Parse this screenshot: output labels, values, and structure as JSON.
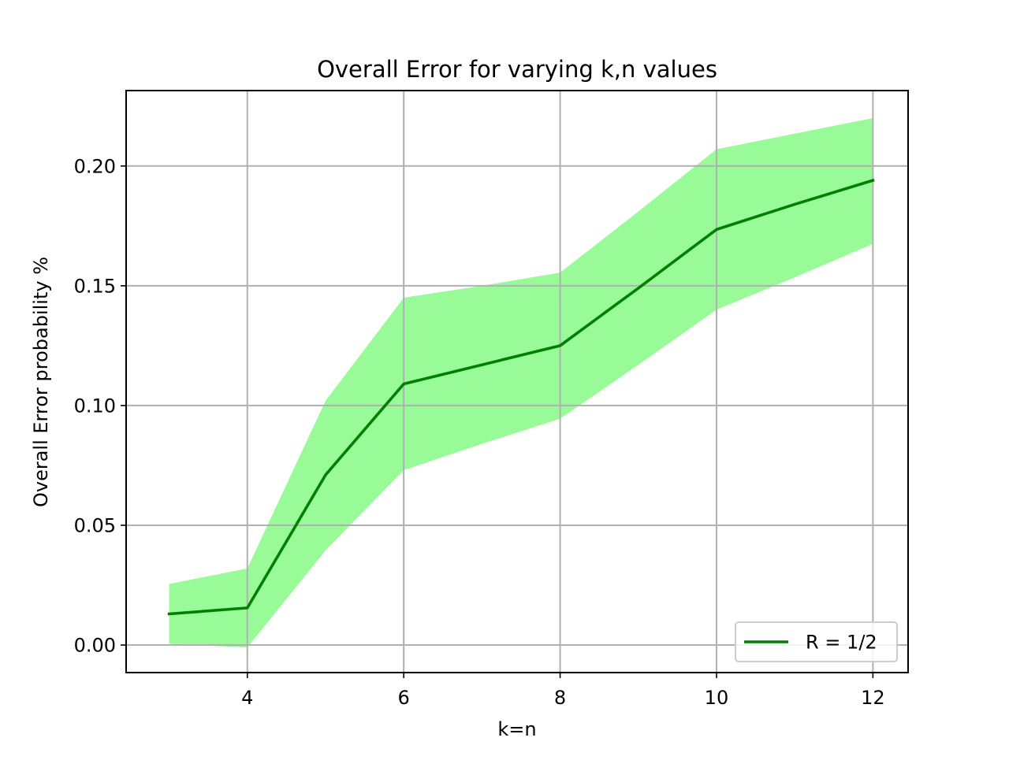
{
  "chart_data": {
    "type": "line",
    "title": "Overall Error for varying k,n values",
    "xlabel": "k=n",
    "ylabel": "Overall Error probability %",
    "xlim": [
      2.45,
      12.45
    ],
    "ylim": [
      -0.0115,
      0.2315
    ],
    "xticks": [
      4,
      6,
      8,
      10,
      12
    ],
    "xtick_labels": [
      "4",
      "6",
      "8",
      "10",
      "12"
    ],
    "yticks": [
      0.0,
      0.05,
      0.1,
      0.15,
      0.2
    ],
    "ytick_labels": [
      "0.00",
      "0.05",
      "0.10",
      "0.15",
      "0.20"
    ],
    "grid": true,
    "legend_position": "lower-right",
    "x": [
      3,
      4,
      5,
      6,
      7,
      8,
      9,
      10,
      11,
      12
    ],
    "series": [
      {
        "name": "R = 1/2",
        "color": "#008000",
        "values": [
          0.013,
          0.0155,
          0.071,
          0.109,
          0.117,
          0.125,
          0.149,
          0.1735,
          0.184,
          0.194
        ]
      }
    ],
    "band": {
      "color": "#98fb98",
      "lower": [
        0.0005,
        -0.001,
        0.0395,
        0.073,
        0.084,
        0.0945,
        0.117,
        0.14,
        0.1535,
        0.1675
      ],
      "upper": [
        0.0255,
        0.032,
        0.102,
        0.145,
        0.15,
        0.1555,
        0.181,
        0.207,
        0.2135,
        0.22
      ]
    }
  }
}
